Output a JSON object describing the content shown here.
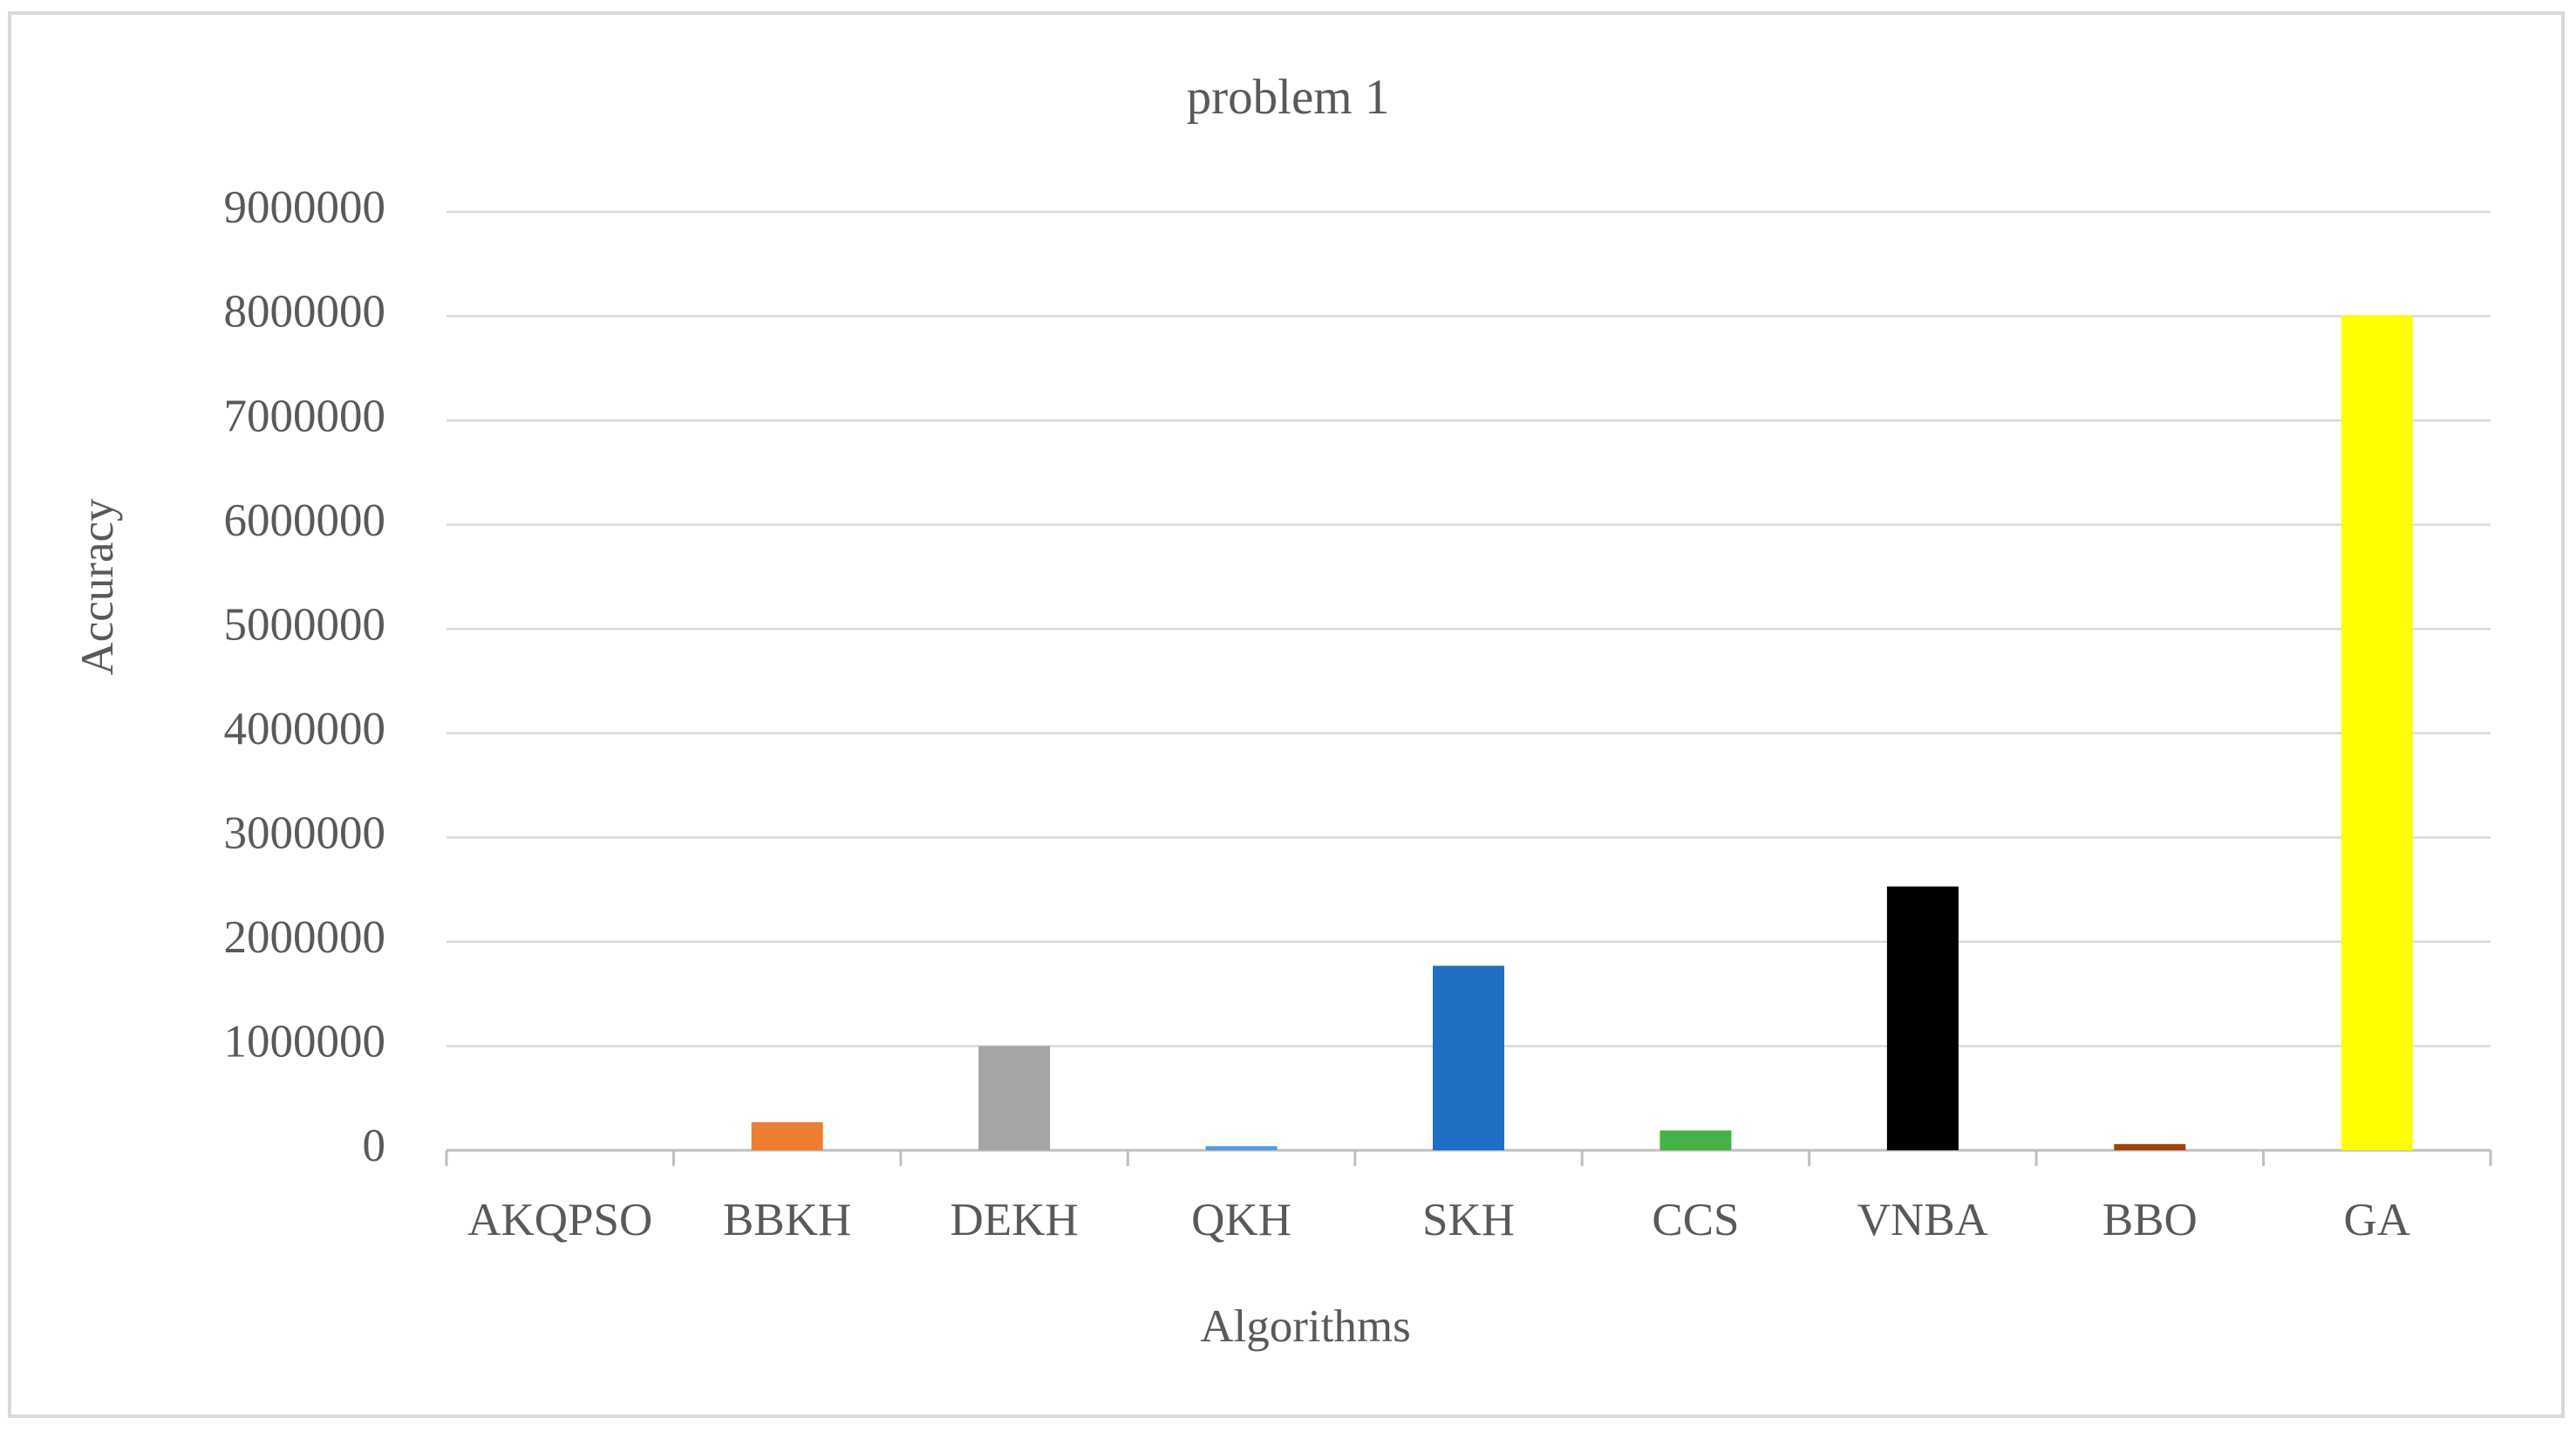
{
  "chart_data": {
    "type": "bar",
    "title": "problem 1",
    "x_label": "Algorithms",
    "y_label": "Accuracy",
    "categories": [
      "AKQPSO",
      "BBKH",
      "DEKH",
      "QKH",
      "SKH",
      "CCS",
      "VNBA",
      "BBO",
      "GA"
    ],
    "values": [
      0,
      270000,
      1000000,
      40000,
      1770000,
      190000,
      2530000,
      60000,
      8010000
    ],
    "colors": [
      "#4472c4",
      "#ed7d31",
      "#a5a5a5",
      "#5b9bd5",
      "#1f6fc5",
      "#44b244",
      "#000000",
      "#a0420c",
      "#ffff00"
    ],
    "ylim": [
      0,
      9000000
    ],
    "yticks": [
      0,
      1000000,
      2000000,
      3000000,
      4000000,
      5000000,
      6000000,
      7000000,
      8000000,
      9000000
    ],
    "grid": true
  }
}
